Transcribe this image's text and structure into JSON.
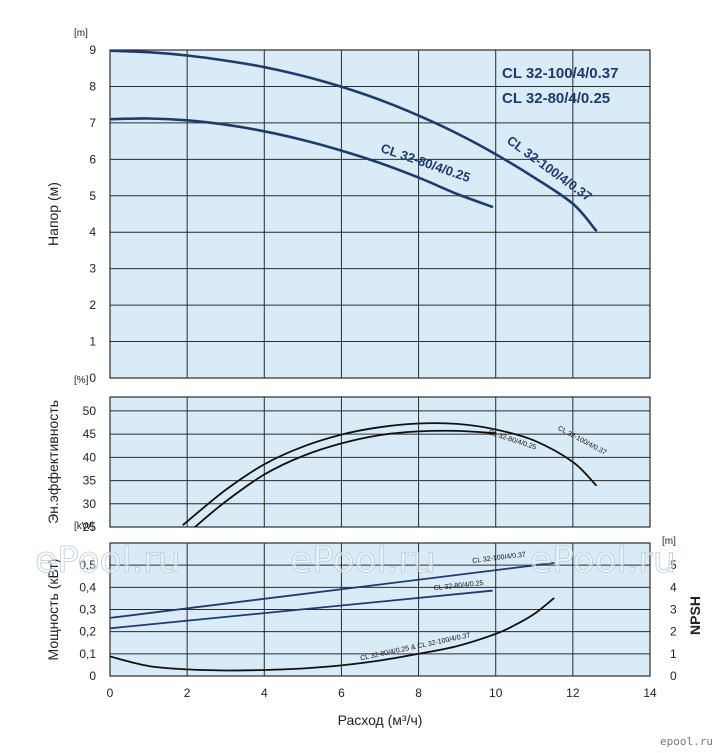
{
  "chart_data": [
    {
      "type": "line",
      "panel": "head",
      "xlabel": "Расход (м³/ч)",
      "ylabel": "Напор (м)",
      "yunit": "[m]",
      "xlim": [
        0,
        14
      ],
      "ylim": [
        0,
        9
      ],
      "xticks": [
        "0",
        "2",
        "4",
        "6",
        "8",
        "10",
        "12",
        "14"
      ],
      "yticks": [
        "0",
        "1",
        "2",
        "3",
        "4",
        "5",
        "6",
        "7",
        "8",
        "9"
      ],
      "grid": true,
      "legend": [
        "CL 32-100/4/0.37",
        "CL 32-80/4/0.25"
      ],
      "series": [
        {
          "name": "CL 32-100/4/0.37",
          "label": "CL 32-100/4/0.37",
          "color": "#1f3a6e",
          "x": [
            0,
            1,
            2,
            3,
            4,
            5,
            6,
            7,
            8,
            9,
            10,
            11,
            12,
            12.6
          ],
          "y": [
            8.98,
            8.94,
            8.85,
            8.71,
            8.53,
            8.29,
            7.99,
            7.63,
            7.2,
            6.71,
            6.14,
            5.5,
            4.78,
            4.05
          ]
        },
        {
          "name": "CL 32-80/4/0.25",
          "label": "CL 32-80/4/0.25",
          "color": "#1f3a6e",
          "x": [
            0,
            1,
            2,
            3,
            4,
            5,
            6,
            7,
            8,
            9,
            9.9
          ],
          "y": [
            7.1,
            7.12,
            7.07,
            6.95,
            6.77,
            6.53,
            6.24,
            5.9,
            5.5,
            5.05,
            4.7
          ]
        }
      ]
    },
    {
      "type": "line",
      "panel": "efficiency",
      "ylabel": "Эн.эффективность",
      "yunit": "[%]",
      "xlim": [
        0,
        14
      ],
      "ylim": [
        25,
        53
      ],
      "yticks": [
        "25",
        "30",
        "35",
        "40",
        "45",
        "50"
      ],
      "grid": true,
      "series": [
        {
          "name": "CL 32-100/4/0.37",
          "label": "CL 32-100/4/0.37",
          "color": "#111111",
          "x": [
            1.9,
            3,
            4,
            5,
            6,
            7,
            8,
            9,
            10,
            11,
            12,
            12.6
          ],
          "y": [
            25.5,
            33,
            38.5,
            42.3,
            44.9,
            46.5,
            47.3,
            47.2,
            46.0,
            43.6,
            39.0,
            34.0
          ]
        },
        {
          "name": "CL 32-80/4/0.25",
          "label": "CL 32-80/4/0.25",
          "color": "#111111",
          "x": [
            2.2,
            3,
            4,
            5,
            6,
            7,
            8,
            9,
            10
          ],
          "y": [
            25.0,
            30.5,
            36.3,
            40.3,
            43.0,
            44.8,
            45.6,
            45.7,
            45.2
          ]
        }
      ]
    },
    {
      "type": "line",
      "panel": "power-npsh",
      "ylabel": "Мощность (кВт)",
      "yunit": "[kW]",
      "y2label": "NPSH",
      "y2unit": "[m]",
      "xlim": [
        0,
        14
      ],
      "ylim": [
        0,
        0.6
      ],
      "y2lim": [
        0,
        6
      ],
      "yticks": [
        "0",
        "0,1",
        "0,2",
        "0,3",
        "0,4",
        "0,5"
      ],
      "y2ticks": [
        "0",
        "1",
        "2",
        "3",
        "4",
        "5"
      ],
      "grid": true,
      "series": [
        {
          "name": "CL 32-100/4/0.37",
          "label": "CL 32-100/4/0.37",
          "axis": "left",
          "color": "#1f3a6e",
          "x": [
            0,
            11.5
          ],
          "y": [
            0.262,
            0.51
          ]
        },
        {
          "name": "CL 32-80/4/0.25",
          "label": "CL 32-80/4/0.25",
          "axis": "left",
          "color": "#1f3a6e",
          "x": [
            0,
            9.9
          ],
          "y": [
            0.215,
            0.385
          ]
        },
        {
          "name": "CL 32-80/4/0.25 & CL 32-100/4/0.37",
          "label": "CL 32-80/4/0.25 & CL 32-100/4/0.37",
          "axis": "right",
          "color": "#111111",
          "x": [
            0,
            1,
            2,
            3,
            4,
            5,
            6,
            7,
            8,
            9,
            10,
            10.5,
            11,
            11.5
          ],
          "y": [
            0.88,
            0.45,
            0.3,
            0.25,
            0.27,
            0.34,
            0.48,
            0.7,
            1.0,
            1.35,
            1.9,
            2.3,
            2.8,
            3.5
          ]
        }
      ]
    }
  ],
  "watermark": {
    "text": "ePool.ru"
  },
  "brand": {
    "text": "epool.ru"
  }
}
